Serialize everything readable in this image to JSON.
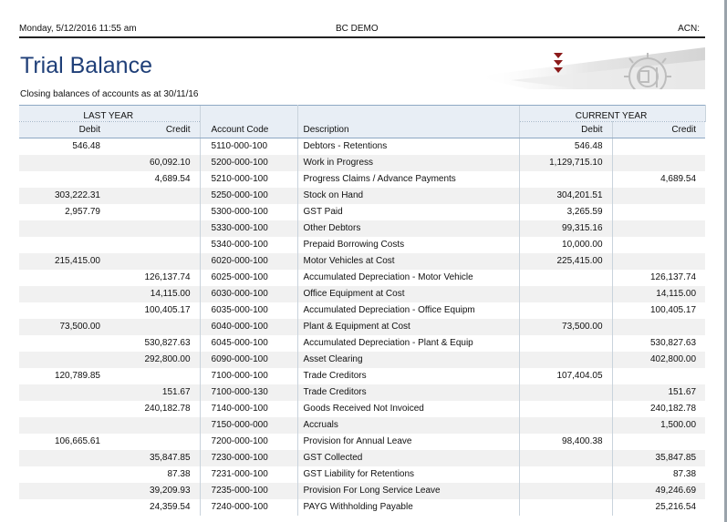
{
  "header": {
    "datetime": "Monday, 5/12/2016 11:55 am",
    "company": "BC DEMO",
    "acn_label": "ACN:"
  },
  "report": {
    "title": "Trial Balance",
    "subtitle": "Closing balances of accounts as at 30/11/16"
  },
  "columns": {
    "last_year": "LAST YEAR",
    "current_year": "CURRENT YEAR",
    "debit": "Debit",
    "credit": "Credit",
    "account_code": "Account Code",
    "description": "Description"
  },
  "rows": [
    {
      "ly_debit": "546.48",
      "ly_credit": "",
      "code": "5110-000-100",
      "desc": "Debtors - Retentions",
      "cy_debit": "546.48",
      "cy_credit": ""
    },
    {
      "ly_debit": "",
      "ly_credit": "60,092.10",
      "code": "5200-000-100",
      "desc": "Work in Progress",
      "cy_debit": "1,129,715.10",
      "cy_credit": ""
    },
    {
      "ly_debit": "",
      "ly_credit": "4,689.54",
      "code": "5210-000-100",
      "desc": "Progress Claims / Advance Payments",
      "cy_debit": "",
      "cy_credit": "4,689.54"
    },
    {
      "ly_debit": "303,222.31",
      "ly_credit": "",
      "code": "5250-000-100",
      "desc": "Stock on Hand",
      "cy_debit": "304,201.51",
      "cy_credit": ""
    },
    {
      "ly_debit": "2,957.79",
      "ly_credit": "",
      "code": "5300-000-100",
      "desc": "GST Paid",
      "cy_debit": "3,265.59",
      "cy_credit": ""
    },
    {
      "ly_debit": "",
      "ly_credit": "",
      "code": "5330-000-100",
      "desc": "Other Debtors",
      "cy_debit": "99,315.16",
      "cy_credit": ""
    },
    {
      "ly_debit": "",
      "ly_credit": "",
      "code": "5340-000-100",
      "desc": "Prepaid Borrowing Costs",
      "cy_debit": "10,000.00",
      "cy_credit": ""
    },
    {
      "ly_debit": "215,415.00",
      "ly_credit": "",
      "code": "6020-000-100",
      "desc": "Motor Vehicles at Cost",
      "cy_debit": "225,415.00",
      "cy_credit": ""
    },
    {
      "ly_debit": "",
      "ly_credit": "126,137.74",
      "code": "6025-000-100",
      "desc": "Accumulated Depreciation - Motor Vehicle",
      "cy_debit": "",
      "cy_credit": "126,137.74"
    },
    {
      "ly_debit": "",
      "ly_credit": "14,115.00",
      "code": "6030-000-100",
      "desc": "Office Equipment at Cost",
      "cy_debit": "",
      "cy_credit": "14,115.00"
    },
    {
      "ly_debit": "",
      "ly_credit": "100,405.17",
      "code": "6035-000-100",
      "desc": "Accumulated Depreciation - Office Equipm",
      "cy_debit": "",
      "cy_credit": "100,405.17"
    },
    {
      "ly_debit": "73,500.00",
      "ly_credit": "",
      "code": "6040-000-100",
      "desc": "Plant & Equipment at Cost",
      "cy_debit": "73,500.00",
      "cy_credit": ""
    },
    {
      "ly_debit": "",
      "ly_credit": "530,827.63",
      "code": "6045-000-100",
      "desc": "Accumulated Depreciation - Plant & Equip",
      "cy_debit": "",
      "cy_credit": "530,827.63"
    },
    {
      "ly_debit": "",
      "ly_credit": "292,800.00",
      "code": "6090-000-100",
      "desc": "Asset Clearing",
      "cy_debit": "",
      "cy_credit": "402,800.00"
    },
    {
      "ly_debit": "120,789.85",
      "ly_credit": "",
      "code": "7100-000-100",
      "desc": "Trade Creditors",
      "cy_debit": "107,404.05",
      "cy_credit": ""
    },
    {
      "ly_debit": "",
      "ly_credit": "151.67",
      "code": "7100-000-130",
      "desc": "Trade Creditors",
      "cy_debit": "",
      "cy_credit": "151.67"
    },
    {
      "ly_debit": "",
      "ly_credit": "240,182.78",
      "code": "7140-000-100",
      "desc": "Goods Received Not Invoiced",
      "cy_debit": "",
      "cy_credit": "240,182.78"
    },
    {
      "ly_debit": "",
      "ly_credit": "",
      "code": "7150-000-000",
      "desc": "Accruals",
      "cy_debit": "",
      "cy_credit": "1,500.00"
    },
    {
      "ly_debit": "106,665.61",
      "ly_credit": "",
      "code": "7200-000-100",
      "desc": "Provision for Annual Leave",
      "cy_debit": "98,400.38",
      "cy_credit": ""
    },
    {
      "ly_debit": "",
      "ly_credit": "35,847.85",
      "code": "7230-000-100",
      "desc": "GST Collected",
      "cy_debit": "",
      "cy_credit": "35,847.85"
    },
    {
      "ly_debit": "",
      "ly_credit": "87.38",
      "code": "7231-000-100",
      "desc": "GST Liability for Retentions",
      "cy_debit": "",
      "cy_credit": "87.38"
    },
    {
      "ly_debit": "",
      "ly_credit": "39,209.93",
      "code": "7235-000-100",
      "desc": "Provision For Long Service Leave",
      "cy_debit": "",
      "cy_credit": "49,246.69"
    },
    {
      "ly_debit": "",
      "ly_credit": "24,359.54",
      "code": "7240-000-100",
      "desc": "PAYG Withholding Payable",
      "cy_debit": "",
      "cy_credit": "25,216.54"
    }
  ],
  "colors": {
    "title": "#1f3f78",
    "header_bg": "#e8eef5",
    "alt_row": "#f1f1f1",
    "logo_arrows": "#8b1a1a"
  },
  "icons": {
    "logo": "gear-logo-icon",
    "arrows": "triple-down-arrow-icon"
  }
}
